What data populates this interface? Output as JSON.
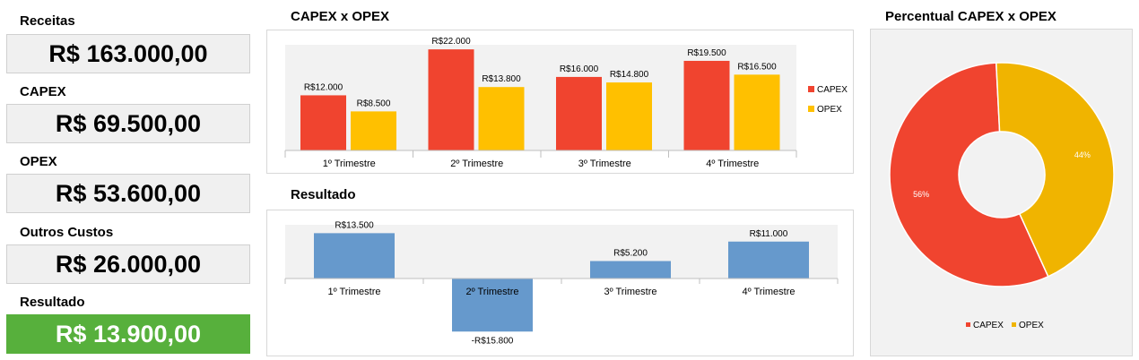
{
  "kpis": {
    "receitas": {
      "label": "Receitas",
      "value": "R$ 163.000,00"
    },
    "capex": {
      "label": "CAPEX",
      "value": "R$ 69.500,00"
    },
    "opex": {
      "label": "OPEX",
      "value": "R$ 53.600,00"
    },
    "outros": {
      "label": "Outros Custos",
      "value": "R$ 26.000,00"
    },
    "resultado": {
      "label": "Resultado",
      "value": "R$ 13.900,00"
    }
  },
  "colors": {
    "capex": "#f0442f",
    "opex": "#ffc000",
    "resultado": "#6699cc",
    "donut_opex": "#f0b400",
    "green": "#57b03c"
  },
  "chart_data": [
    {
      "type": "bar",
      "title": "CAPEX x OPEX",
      "categories": [
        "1º Trimestre",
        "2º Trimestre",
        "3º Trimestre",
        "4º Trimestre"
      ],
      "series": [
        {
          "name": "CAPEX",
          "values": [
            12000,
            22000,
            16000,
            19500
          ],
          "labels": [
            "R$12.000",
            "R$22.000",
            "R$16.000",
            "R$19.500"
          ]
        },
        {
          "name": "OPEX",
          "values": [
            8500,
            13800,
            14800,
            16500
          ],
          "labels": [
            "R$8.500",
            "R$13.800",
            "R$14.800",
            "R$16.500"
          ]
        }
      ],
      "ylim": [
        0,
        23000
      ],
      "legend": "right"
    },
    {
      "type": "bar",
      "title": "Resultado",
      "categories": [
        "1º Trimestre",
        "2º Trimestre",
        "3º Trimestre",
        "4º Trimestre"
      ],
      "values": [
        13500,
        -15800,
        5200,
        11000
      ],
      "labels": [
        "R$13.500",
        "-R$15.800",
        "R$5.200",
        "R$11.000"
      ],
      "ylim": [
        -16000,
        16000
      ]
    },
    {
      "type": "pie",
      "title": "Percentual CAPEX x OPEX",
      "labels": [
        "CAPEX",
        "OPEX"
      ],
      "values": [
        56,
        44
      ],
      "value_labels": [
        "56%",
        "44%"
      ],
      "hole": true,
      "legend": "bottom"
    }
  ]
}
